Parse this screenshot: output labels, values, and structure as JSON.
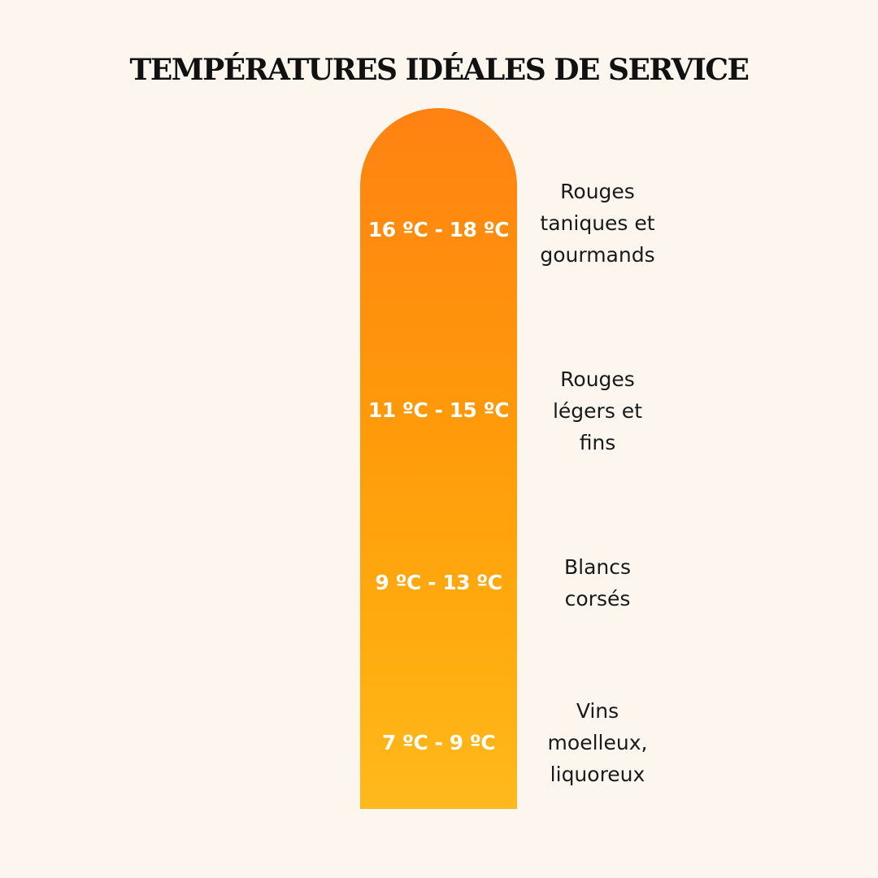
{
  "title": "TEMPÉRATURES IDÉALES DE SERVICE",
  "colors": {
    "background": "#fcf6ef",
    "thermometer_top": "#ff8212",
    "thermometer_bottom": "#ffb91c",
    "temperature_text": "#ffffff",
    "description_text": "#1a1a1a"
  },
  "bands": [
    {
      "range": "16 ºC - 18 ºC",
      "lines": [
        "Rouges",
        "taniques et",
        "gourmands"
      ]
    },
    {
      "range": "11 ºC - 15 ºC",
      "lines": [
        "Rouges",
        "légers et",
        "fins"
      ]
    },
    {
      "range": "9 ºC - 13 ºC",
      "lines": [
        "Blancs",
        "corsés"
      ]
    },
    {
      "range": "7 ºC - 9 ºC",
      "lines": [
        "Vins",
        "moelleux,",
        "liquoreux"
      ]
    }
  ]
}
